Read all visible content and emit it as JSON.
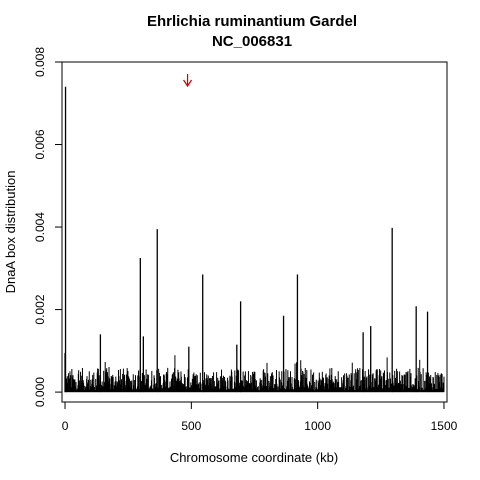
{
  "chart_data": {
    "type": "bar",
    "title": "Ehrlichia ruminantium Gardel",
    "subtitle": "NC_006831",
    "xlabel": "Chromosome coordinate (kb)",
    "ylabel": "DnaA box distribution",
    "xlim": [
      -12,
      1512
    ],
    "ylim": [
      -0.00024,
      0.008
    ],
    "xticks": [
      0,
      500,
      1000,
      1500
    ],
    "yticks": [
      0.0,
      0.002,
      0.004,
      0.006,
      0.008
    ],
    "ytick_labels": [
      "0.000",
      "0.002",
      "0.004",
      "0.006",
      "0.008"
    ],
    "grid": false,
    "line_color": "#000000",
    "annotation": {
      "type": "arrow",
      "x_kb": 485,
      "color": "#cc0000"
    },
    "peaks": [
      {
        "x": 2,
        "y": 0.0074
      },
      {
        "x": 298,
        "y": 0.00325
      },
      {
        "x": 365,
        "y": 0.00395
      },
      {
        "x": 545,
        "y": 0.00285
      },
      {
        "x": 695,
        "y": 0.0022
      },
      {
        "x": 865,
        "y": 0.00185
      },
      {
        "x": 920,
        "y": 0.00285
      },
      {
        "x": 1210,
        "y": 0.0016
      },
      {
        "x": 1295,
        "y": 0.00398
      },
      {
        "x": 1390,
        "y": 0.00208
      },
      {
        "x": 1435,
        "y": 0.00195
      },
      {
        "x": 140,
        "y": 0.0014
      },
      {
        "x": 310,
        "y": 0.00135
      },
      {
        "x": 0,
        "y": 0.00095
      },
      {
        "x": 490,
        "y": 0.0011
      },
      {
        "x": 680,
        "y": 0.00115
      },
      {
        "x": 1180,
        "y": 0.00145
      }
    ]
  }
}
